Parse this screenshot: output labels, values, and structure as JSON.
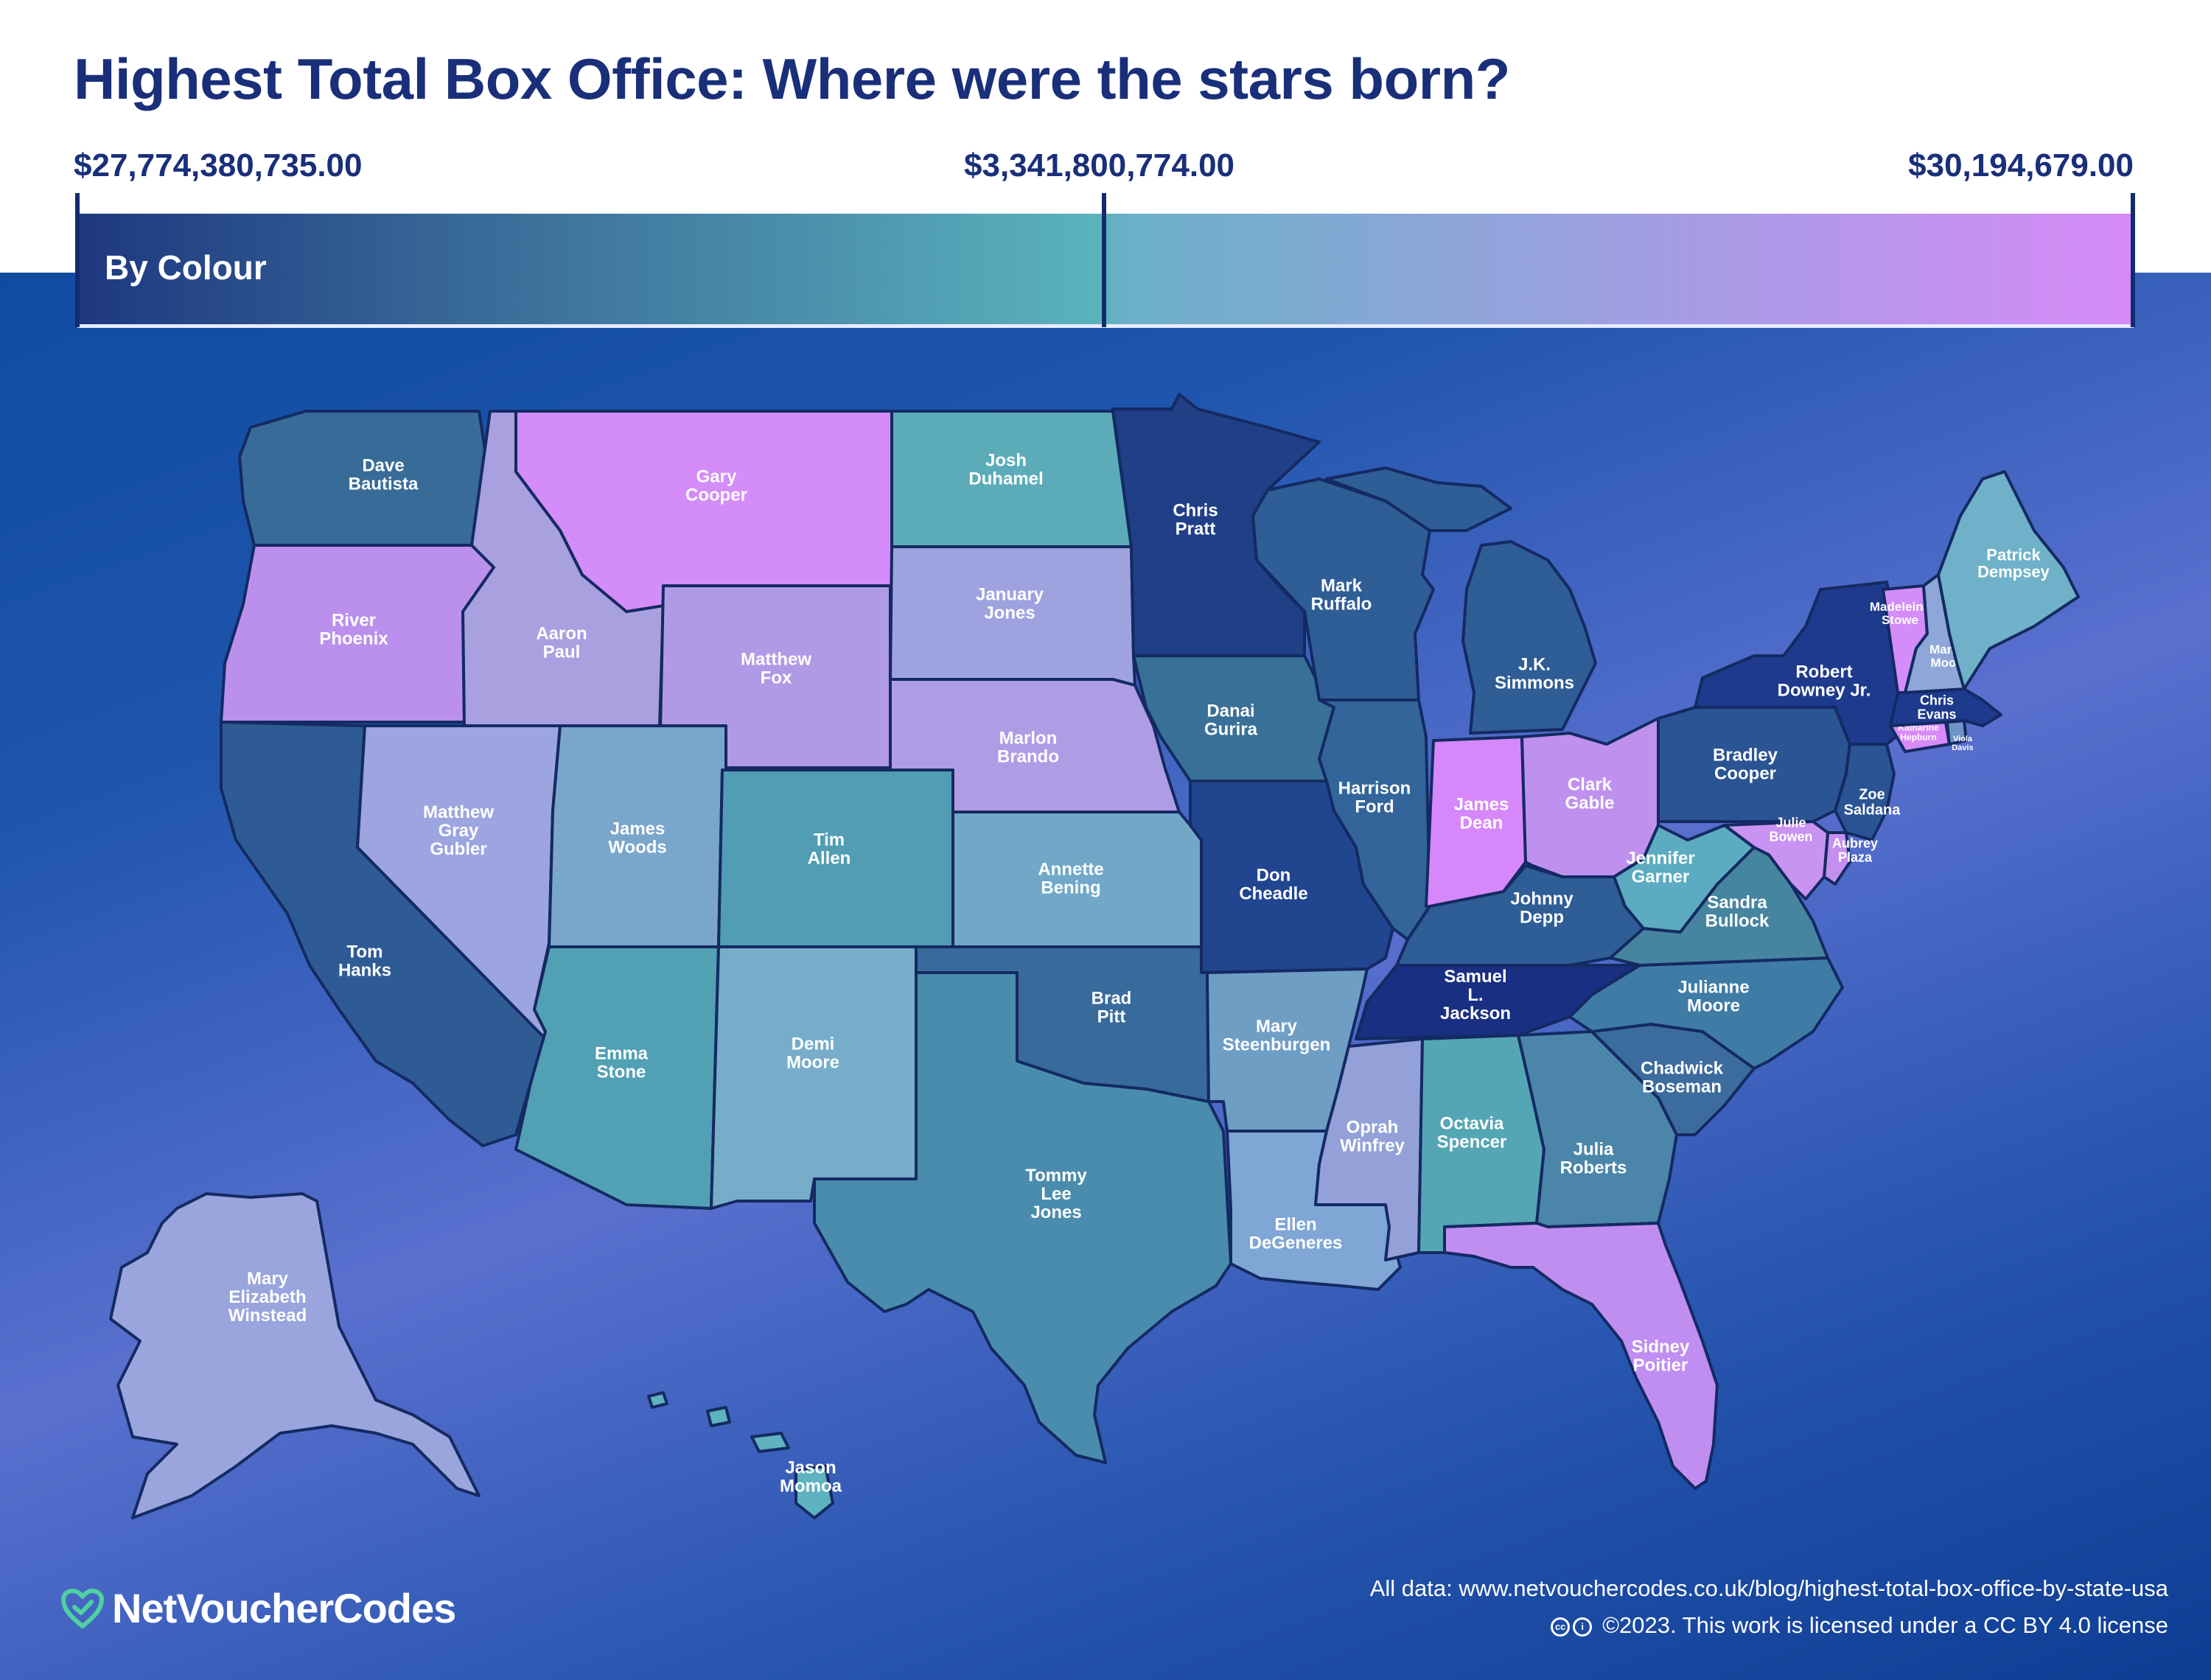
{
  "title": "Highest Total Box Office: Where were the stars born?",
  "legend": {
    "max_label": "$27,774,380,735.00",
    "mid_label": "$3,341,800,774.00",
    "min_label": "$30,194,679.00",
    "caption": "By Colour",
    "colors": {
      "high": "#1e3880",
      "mid": "#5bb3bd",
      "low": "#d68af8"
    }
  },
  "states": {
    "WA": "Dave Bautista",
    "OR": "River Phoenix",
    "CA": "Tom Hanks",
    "NV": "Matthew Gray Gubler",
    "ID": "Aaron Paul",
    "MT": "Gary Cooper",
    "WY": "Matthew Fox",
    "UT": "James Woods",
    "CO": "Tim Allen",
    "AZ": "Emma Stone",
    "NM": "Demi Moore",
    "ND": "Josh Duhamel",
    "SD": "January Jones",
    "NE": "Marlon Brando",
    "KS": "Annette Bening",
    "OK": "Brad Pitt",
    "TX": "Tommy Lee Jones",
    "MN": "Chris Pratt",
    "IA": "Danai Gurira",
    "MO": "Don Cheadle",
    "AR": "Mary Steenburgen",
    "LA": "Ellen DeGeneres",
    "WI": "Mark Ruffalo",
    "IL": "Harrison Ford",
    "MI": "J.K. Simmons",
    "IN": "James Dean",
    "OH": "Clark Gable",
    "KY": "Johnny Depp",
    "TN": "Samuel L. Jackson",
    "MS": "Oprah Winfrey",
    "AL": "Octavia Spencer",
    "GA": "Julia Roberts",
    "FL": "Sidney Poitier",
    "SC": "Chadwick Boseman",
    "NC": "Julianne Moore",
    "VA": "Sandra Bullock",
    "WV": "Jennifer Garner",
    "PA": "Bradley Cooper",
    "NY": "Robert Downey Jr.",
    "VT": "Madeleine Stowe",
    "NH": "Mandy Moore",
    "ME": "Patrick Dempsey",
    "MA": "Chris Evans",
    "CT": "Katharine Hepburn",
    "RI": "Viola Davis",
    "NJ": "Zoe Saldana",
    "DE": "Aubrey Plaza",
    "MD": "Julie Bowen",
    "AK": "Mary Elizabeth Winstead",
    "HI": "Jason Momoa"
  },
  "footer": {
    "source": "All data: www.netvouchercodes.co.uk/blog/highest-total-box-office-by-state-usa",
    "license": "©2023. This work is licensed under a CC BY 4.0 license",
    "cc_icon": "creative-commons-icon",
    "brand": "NetVoucherCodes",
    "brand_icon": "heart-check-icon"
  }
}
